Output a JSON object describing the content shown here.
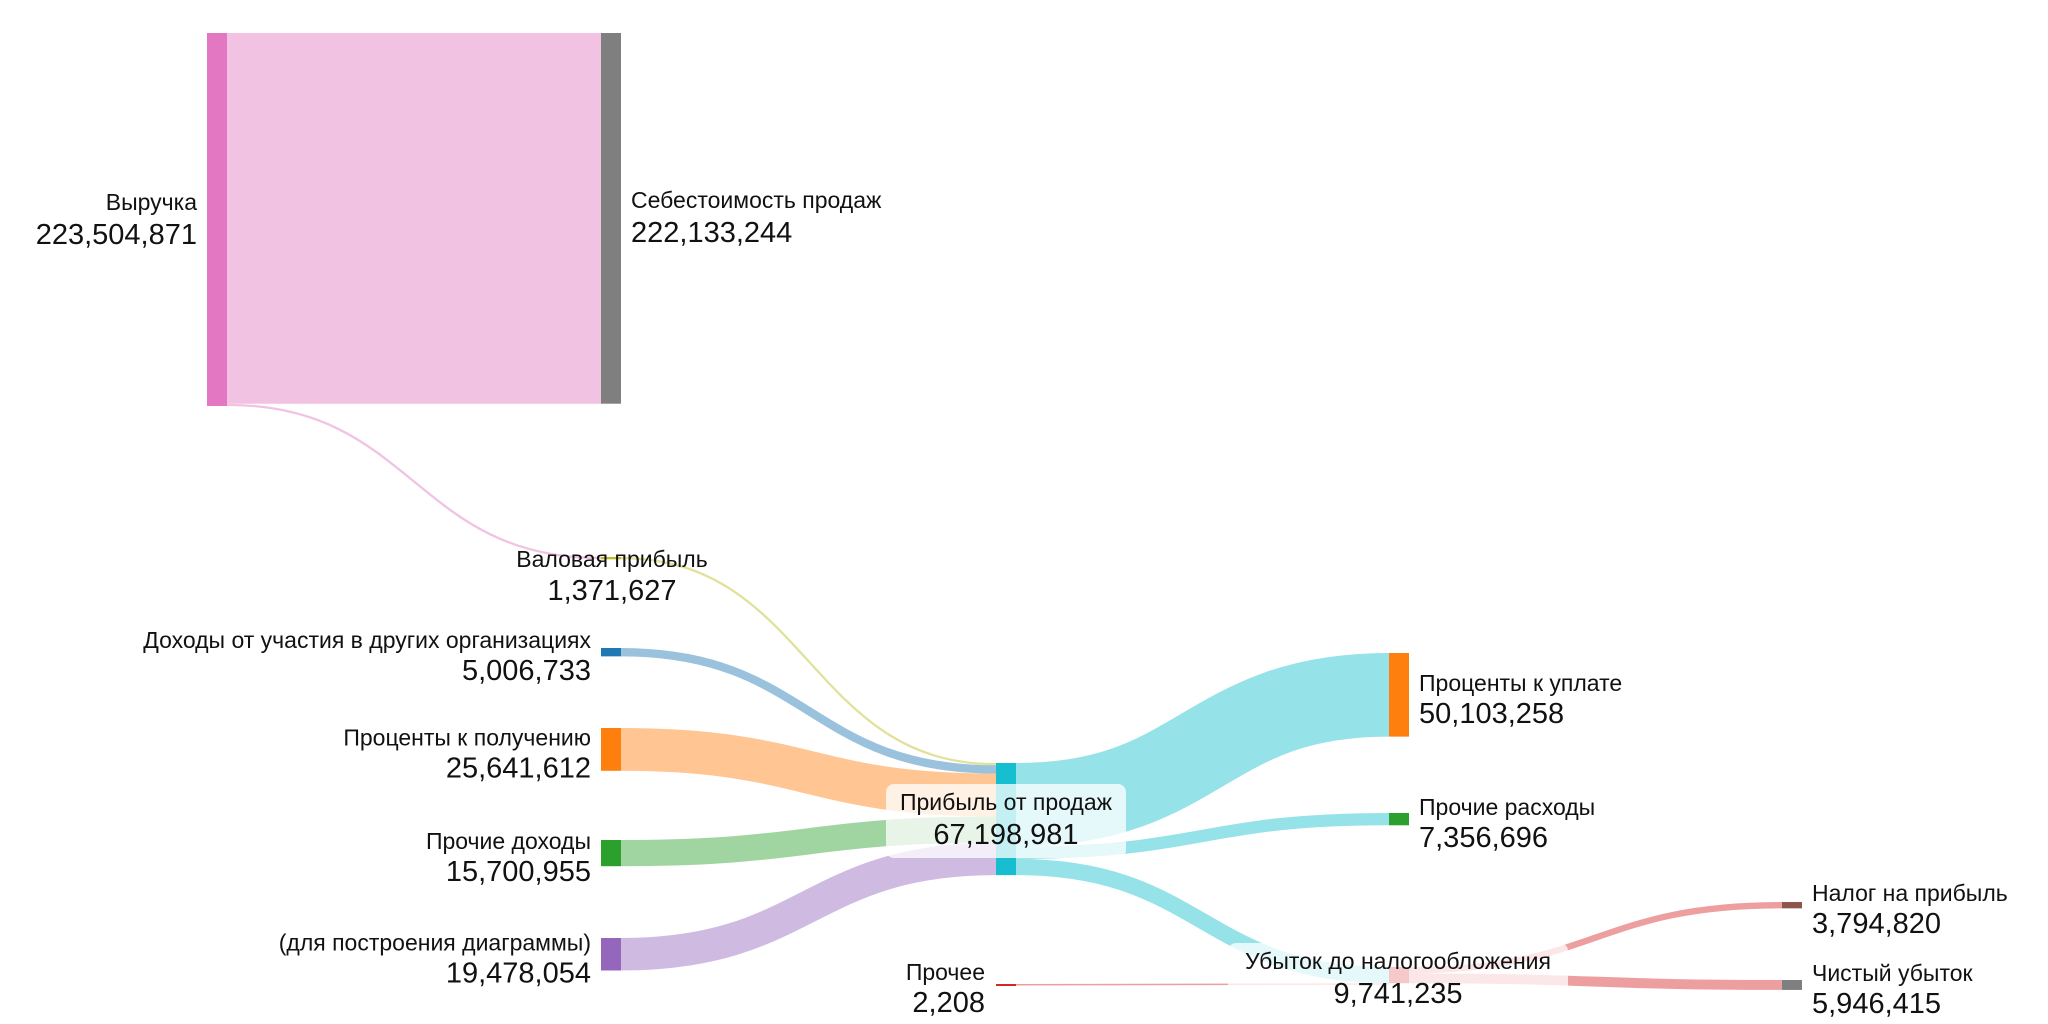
{
  "chart_data": {
    "type": "sankey",
    "nodes": [
      {
        "id": "revenue",
        "name": "Выручка",
        "value": "223,504,871",
        "color": "#e377c2"
      },
      {
        "id": "cogs",
        "name": "Себестоимость продаж",
        "value": "222,133,244",
        "color": "#7f7f7f"
      },
      {
        "id": "gross",
        "name": "Валовая прибыль",
        "value": "1,371,627",
        "color": "#bcbd22"
      },
      {
        "id": "participation",
        "name": "Доходы от участия в других организациях",
        "value": "5,006,733",
        "color": "#1f77b4"
      },
      {
        "id": "int_income",
        "name": "Проценты к получению",
        "value": "25,641,612",
        "color": "#ff7f0e"
      },
      {
        "id": "other_income",
        "name": "Прочие доходы",
        "value": "15,700,955",
        "color": "#2ca02c"
      },
      {
        "id": "balancing",
        "name": "(для построения диаграммы)",
        "value": "19,478,054",
        "color": "#9467bd"
      },
      {
        "id": "op_profit",
        "name": "Прибыль от продаж",
        "value": "67,198,981",
        "color": "#17becf"
      },
      {
        "id": "int_paid",
        "name": "Проценты к уплате",
        "value": "50,103,258",
        "color": "#ff7f0e"
      },
      {
        "id": "other_exp",
        "name": "Прочие расходы",
        "value": "7,356,696",
        "color": "#2ca02c"
      },
      {
        "id": "other",
        "name": "Прочее",
        "value": "2,208",
        "color": "#d62728"
      },
      {
        "id": "pretax_loss",
        "name": "Убыток до налогообложения",
        "value": "9,741,235",
        "color": "#d62728"
      },
      {
        "id": "tax",
        "name": "Налог на прибыль",
        "value": "3,794,820",
        "color": "#8c564b"
      },
      {
        "id": "net_loss",
        "name": "Чистый убыток",
        "value": "5,946,415",
        "color": "#7f7f7f"
      }
    ],
    "links": [
      {
        "source": "revenue",
        "target": "cogs",
        "value": 222133244
      },
      {
        "source": "revenue",
        "target": "gross",
        "value": 1371627
      },
      {
        "source": "gross",
        "target": "op_profit",
        "value": 1371627
      },
      {
        "source": "participation",
        "target": "op_profit",
        "value": 5006733
      },
      {
        "source": "int_income",
        "target": "op_profit",
        "value": 25641612
      },
      {
        "source": "other_income",
        "target": "op_profit",
        "value": 15700955
      },
      {
        "source": "balancing",
        "target": "op_profit",
        "value": 19478054
      },
      {
        "source": "op_profit",
        "target": "int_paid",
        "value": 50103258
      },
      {
        "source": "op_profit",
        "target": "other_exp",
        "value": 7356696
      },
      {
        "source": "op_profit",
        "target": "pretax_loss",
        "value": 9739027
      },
      {
        "source": "other",
        "target": "pretax_loss",
        "value": 2208
      },
      {
        "source": "pretax_loss",
        "target": "tax",
        "value": 3794820
      },
      {
        "source": "pretax_loss",
        "target": "net_loss",
        "value": 5946415
      }
    ]
  }
}
